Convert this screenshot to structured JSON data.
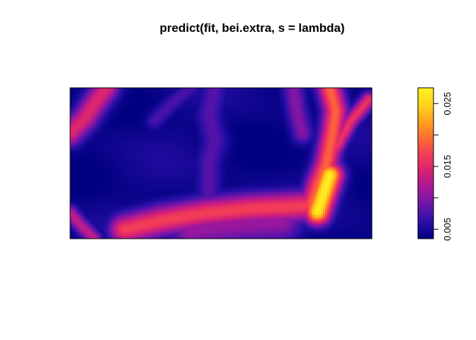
{
  "chart_data": {
    "type": "heatmap",
    "title": "predict(fit, bei.extra, s = lambda)",
    "xlabel": "",
    "ylabel": "",
    "axes_shown": false,
    "legend": "right",
    "colorbar": {
      "min": 0.0035,
      "max": 0.0275,
      "ticks": [
        0.005,
        0.01,
        0.015,
        0.02,
        0.025
      ],
      "tick_labels": [
        "0.005",
        "",
        "0.015",
        "",
        "0.025"
      ]
    },
    "colormap": [
      "#000080",
      "#2a0fa8",
      "#6a14a8",
      "#a5189a",
      "#d42075",
      "#f23b58",
      "#ff6a35",
      "#ffa01c",
      "#ffd21e",
      "#fff220"
    ],
    "features": [
      {
        "name": "southern ridge",
        "path": [
          [
            0.18,
            0.06
          ],
          [
            0.3,
            0.12
          ],
          [
            0.45,
            0.17
          ],
          [
            0.6,
            0.2
          ],
          [
            0.72,
            0.21
          ],
          [
            0.8,
            0.22
          ]
        ],
        "width": 0.035,
        "value": 0.017
      },
      {
        "name": "eastern ridge",
        "path": [
          [
            0.8,
            0.22
          ],
          [
            0.82,
            0.35
          ],
          [
            0.85,
            0.5
          ],
          [
            0.87,
            0.7
          ],
          [
            0.88,
            0.85
          ],
          [
            0.86,
            1.0
          ]
        ],
        "width": 0.028,
        "value": 0.019
      },
      {
        "name": "eastern hotspot",
        "path": [
          [
            0.82,
            0.18
          ],
          [
            0.84,
            0.3
          ],
          [
            0.86,
            0.42
          ]
        ],
        "width": 0.03,
        "value": 0.027
      },
      {
        "name": "northeast ridge",
        "path": [
          [
            0.88,
            0.6
          ],
          [
            0.93,
            0.78
          ],
          [
            0.99,
            0.92
          ]
        ],
        "width": 0.018,
        "value": 0.016
      },
      {
        "name": "northwest ridge",
        "path": [
          [
            0.0,
            0.7
          ],
          [
            0.05,
            0.8
          ],
          [
            0.09,
            0.92
          ],
          [
            0.12,
            1.0
          ]
        ],
        "width": 0.03,
        "value": 0.015
      },
      {
        "name": "southwest ridge",
        "path": [
          [
            0.0,
            0.17
          ],
          [
            0.04,
            0.08
          ],
          [
            0.08,
            0.0
          ]
        ],
        "width": 0.018,
        "value": 0.013
      },
      {
        "name": "central ridge",
        "path": [
          [
            0.46,
            0.3
          ],
          [
            0.46,
            0.5
          ],
          [
            0.48,
            0.65
          ],
          [
            0.46,
            0.82
          ],
          [
            0.48,
            1.0
          ]
        ],
        "width": 0.03,
        "value": 0.008
      },
      {
        "name": "lower middle ridge",
        "path": [
          [
            0.4,
            0.06
          ],
          [
            0.55,
            0.1
          ],
          [
            0.7,
            0.12
          ]
        ],
        "width": 0.05,
        "value": 0.011
      },
      {
        "name": "center-north ridge",
        "path": [
          [
            0.28,
            0.78
          ],
          [
            0.35,
            0.92
          ],
          [
            0.4,
            1.0
          ]
        ],
        "width": 0.02,
        "value": 0.0075
      },
      {
        "name": "east-center ridge",
        "path": [
          [
            0.74,
            1.0
          ],
          [
            0.75,
            0.85
          ],
          [
            0.77,
            0.7
          ]
        ],
        "width": 0.025,
        "value": 0.01
      }
    ]
  }
}
